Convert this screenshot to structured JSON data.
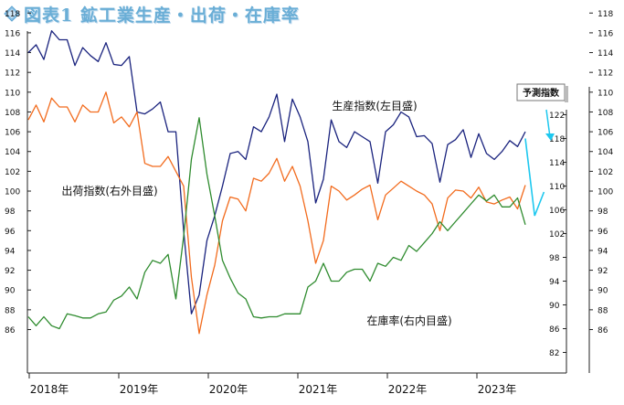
{
  "title": "図表1 鉱工業生産・出荷・在庫率",
  "chart_data": {
    "type": "line",
    "xlabel": "",
    "ylabel": "",
    "x_ticks": [
      "2018年",
      "2019年",
      "2020年",
      "2021年",
      "2022年",
      "2023年"
    ],
    "y_left": {
      "ticks": [
        86,
        88,
        90,
        92,
        94,
        96,
        98,
        100,
        102,
        104,
        106,
        108,
        110,
        112,
        114,
        116,
        118
      ],
      "ylim": [
        84,
        118
      ]
    },
    "y_right_inner": {
      "ticks": [
        82,
        86,
        90,
        94,
        98,
        102,
        106,
        110,
        114,
        118,
        122
      ],
      "ylim": [
        82,
        122
      ]
    },
    "y_right_outer": {
      "ticks": [
        86,
        88,
        90,
        92,
        94,
        96,
        98,
        100,
        102,
        104,
        106,
        108,
        110,
        112,
        114,
        116,
        118
      ],
      "ylim": [
        84,
        118
      ]
    },
    "grid": false,
    "start_month": "2018-01",
    "series": [
      {
        "name": "生産指数(左目盛)",
        "axis": "left",
        "color": "#1a237e",
        "values": [
          114.0,
          114.8,
          113.3,
          116.2,
          115.3,
          115.3,
          112.7,
          114.5,
          113.7,
          113.1,
          115.0,
          112.8,
          112.7,
          113.6,
          108.0,
          107.8,
          108.3,
          109.0,
          106.0,
          106.0,
          96.0,
          87.6,
          89.5,
          95.0,
          97.5,
          100.5,
          103.8,
          104.0,
          103.2,
          106.5,
          106.0,
          107.5,
          109.8,
          105.0,
          109.3,
          107.5,
          105.0,
          98.8,
          101.2,
          107.2,
          105.0,
          104.4,
          106.0,
          105.5,
          105.0,
          100.8,
          106.0,
          106.7,
          108.0,
          107.5,
          105.5,
          105.6,
          104.8,
          100.9,
          104.7,
          105.2,
          106.2,
          103.4,
          105.8,
          103.8,
          103.2,
          104.0,
          105.1,
          104.5,
          106.0
        ]
      },
      {
        "name": "出荷指数(右外目盛)",
        "axis": "right_outer",
        "color": "#f26b1d",
        "values": [
          107.2,
          108.7,
          107.0,
          109.4,
          108.5,
          108.5,
          107.0,
          108.7,
          108.0,
          108.0,
          110.0,
          106.9,
          107.5,
          106.5,
          108.0,
          102.8,
          102.5,
          102.5,
          103.5,
          102.0,
          100.5,
          91.3,
          85.6,
          89.5,
          92.5,
          97.0,
          99.4,
          99.2,
          98.0,
          101.3,
          101.0,
          101.8,
          103.3,
          101.0,
          102.5,
          100.5,
          97.0,
          92.7,
          95.0,
          100.5,
          100.0,
          99.1,
          99.6,
          100.2,
          100.6,
          97.1,
          99.6,
          100.3,
          101.0,
          100.5,
          100.0,
          99.6,
          98.7,
          96.0,
          99.3,
          100.1,
          100.0,
          99.3,
          100.4,
          98.9,
          98.7,
          99.1,
          99.4,
          98.2,
          100.6
        ]
      },
      {
        "name": "在庫率(右内目盛)",
        "axis": "right_inner",
        "color": "#2e8b2e",
        "values": [
          88.0,
          86.5,
          88.0,
          86.5,
          86.0,
          88.5,
          88.2,
          87.8,
          87.8,
          88.5,
          88.8,
          90.8,
          91.5,
          93.0,
          91.0,
          95.5,
          97.5,
          97.0,
          98.5,
          91.0,
          101.5,
          114.5,
          121.5,
          112.0,
          105.0,
          97.5,
          94.5,
          92.0,
          91.0,
          88.0,
          87.8,
          88.0,
          88.0,
          88.5,
          88.5,
          88.5,
          93.0,
          94.0,
          97.0,
          94.0,
          94.0,
          95.5,
          96.0,
          96.0,
          94.0,
          97.0,
          96.5,
          98.0,
          97.5,
          100.0,
          99.0,
          100.5,
          102.0,
          104.0,
          102.5,
          104.0,
          105.5,
          107.0,
          108.5,
          107.5,
          108.5,
          106.5,
          106.5,
          108.0,
          103.5
        ]
      }
    ],
    "annotations": [
      {
        "label": "生産指数(左目盛)",
        "series": 0
      },
      {
        "label": "出荷指数(右外目盛)",
        "series": 1
      },
      {
        "label": "在庫率(右内目盛)",
        "series": 2
      }
    ],
    "forecast": {
      "label": "予測指数",
      "color": "#1ec8ef",
      "production_right_inner": [
        118.0,
        105.0,
        109.0
      ]
    }
  }
}
